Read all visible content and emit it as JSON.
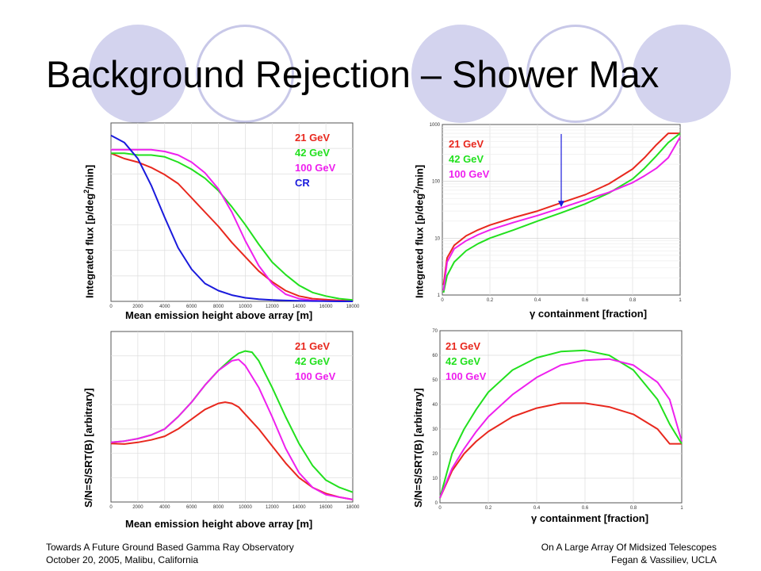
{
  "slide": {
    "title": "Background Rejection – Shower Max",
    "footer_left": [
      "Towards A Future Ground Based Gamma Ray Observatory",
      "October 20, 2005, Malibu, California"
    ],
    "footer_right": [
      "On A Large Array Of Midsized Telescopes",
      "Fegan & Vassiliev, UCLA"
    ],
    "colors": {
      "red": "#e8281e",
      "green": "#22e01e",
      "magenta": "#ee20ee",
      "blue": "#1a1adc",
      "circle_fill": "#d3d3ee",
      "circle_ring": "#c8c8e8"
    }
  },
  "chart_data": [
    {
      "type": "line",
      "xlabel": "Mean emission height above array [m]",
      "ylabel": "Integrated flux [p/deg",
      "ylabel_sup": "2",
      "ylabel_tail": "/min]",
      "xlim": [
        0,
        18000
      ],
      "xticks": [
        "0",
        "2000",
        "4000",
        "6000",
        "8000",
        "10000",
        "12000",
        "14000",
        "16000",
        "18000"
      ],
      "yticks": [],
      "grid": true,
      "legend": [
        "21 GeV",
        "42 GeV",
        "100 GeV",
        "CR"
      ],
      "series": [
        {
          "name": "21 GeV",
          "color": "#e8281e",
          "x": [
            0,
            1000,
            2000,
            3000,
            4000,
            5000,
            6000,
            7000,
            8000,
            9000,
            10000,
            11000,
            12000,
            13000,
            14000,
            15000,
            16000,
            17000,
            18000
          ],
          "y": [
            0.83,
            0.8,
            0.78,
            0.75,
            0.71,
            0.66,
            0.58,
            0.5,
            0.42,
            0.33,
            0.25,
            0.17,
            0.11,
            0.06,
            0.03,
            0.015,
            0.01,
            0.005,
            0.003
          ]
        },
        {
          "name": "42 GeV",
          "color": "#22e01e",
          "x": [
            0,
            1000,
            2000,
            3000,
            4000,
            5000,
            6000,
            7000,
            8000,
            9000,
            10000,
            11000,
            12000,
            13000,
            14000,
            15000,
            16000,
            17000,
            18000
          ],
          "y": [
            0.83,
            0.83,
            0.82,
            0.82,
            0.81,
            0.78,
            0.74,
            0.69,
            0.62,
            0.53,
            0.43,
            0.32,
            0.22,
            0.15,
            0.09,
            0.05,
            0.03,
            0.015,
            0.008
          ]
        },
        {
          "name": "100 GeV",
          "color": "#ee20ee",
          "x": [
            0,
            1000,
            2000,
            3000,
            4000,
            5000,
            6000,
            7000,
            8000,
            9000,
            10000,
            11000,
            12000,
            13000,
            14000,
            15000,
            16000,
            17000,
            18000
          ],
          "y": [
            0.85,
            0.85,
            0.85,
            0.85,
            0.84,
            0.82,
            0.78,
            0.72,
            0.63,
            0.5,
            0.34,
            0.2,
            0.1,
            0.04,
            0.015,
            0.006,
            0.002,
            0.001,
            0.0
          ]
        },
        {
          "name": "CR",
          "color": "#1a1adc",
          "x": [
            0,
            1000,
            2000,
            3000,
            4000,
            5000,
            6000,
            7000,
            8000,
            9000,
            10000,
            11000,
            12000,
            13000,
            14000,
            15000,
            16000,
            17000,
            18000
          ],
          "y": [
            0.93,
            0.89,
            0.8,
            0.65,
            0.47,
            0.3,
            0.18,
            0.1,
            0.06,
            0.035,
            0.02,
            0.012,
            0.008,
            0.005,
            0.003,
            0.002,
            0.001,
            0.0,
            0.0
          ]
        }
      ]
    },
    {
      "type": "line",
      "xlabel": "γ containment [fraction]",
      "ylabel": "Integrated flux [p/deg",
      "ylabel_sup": "2",
      "ylabel_tail": "/min]",
      "xlim": [
        0,
        1
      ],
      "ylim": [
        1,
        1000
      ],
      "yscale": "log",
      "xticks": [
        "0",
        "0.2",
        "0.4",
        "0.6",
        "0.8",
        "1"
      ],
      "yticks": [
        "1",
        "10",
        "100",
        "1000"
      ],
      "grid": true,
      "legend": [
        "21 GeV",
        "42 GeV",
        "100 GeV"
      ],
      "annotation": "downward arrow at x≈0.5 from top to the curves",
      "series": [
        {
          "name": "21 GeV",
          "color": "#e8281e",
          "x": [
            0.005,
            0.02,
            0.05,
            0.1,
            0.15,
            0.2,
            0.3,
            0.4,
            0.5,
            0.6,
            0.7,
            0.8,
            0.85,
            0.9,
            0.95,
            1.0
          ],
          "y": [
            1.5,
            4.5,
            7.5,
            11,
            14,
            17,
            23,
            30,
            42,
            58,
            90,
            165,
            260,
            440,
            700,
            700
          ]
        },
        {
          "name": "42 GeV",
          "color": "#22e01e",
          "x": [
            0.005,
            0.02,
            0.05,
            0.1,
            0.15,
            0.2,
            0.3,
            0.4,
            0.5,
            0.6,
            0.7,
            0.8,
            0.85,
            0.9,
            0.95,
            1.0
          ],
          "y": [
            1.1,
            2.2,
            3.8,
            6,
            8,
            10,
            14,
            20,
            28,
            40,
            62,
            110,
            170,
            280,
            480,
            700
          ]
        },
        {
          "name": "100 GeV",
          "color": "#ee20ee",
          "x": [
            0.005,
            0.02,
            0.05,
            0.1,
            0.15,
            0.2,
            0.3,
            0.4,
            0.5,
            0.6,
            0.7,
            0.8,
            0.85,
            0.9,
            0.95,
            1.0
          ],
          "y": [
            1.2,
            3.8,
            6.5,
            9,
            11.5,
            14,
            19,
            25,
            34,
            47,
            64,
            95,
            125,
            170,
            260,
            600
          ]
        }
      ]
    },
    {
      "type": "line",
      "xlabel": "Mean emission height above array [m]",
      "ylabel": "S/N=S/SRT(B) [arbitrary]",
      "xlim": [
        0,
        18000
      ],
      "xticks": [
        "0",
        "2000",
        "4000",
        "6000",
        "8000",
        "10000",
        "12000",
        "14000",
        "16000",
        "18000"
      ],
      "yticks": [],
      "grid": true,
      "legend": [
        "21 GeV",
        "42 GeV",
        "100 GeV"
      ],
      "series": [
        {
          "name": "21 GeV",
          "color": "#e8281e",
          "x": [
            0,
            1000,
            2000,
            3000,
            4000,
            5000,
            6000,
            7000,
            8000,
            8500,
            9000,
            9500,
            10000,
            11000,
            12000,
            13000,
            14000,
            15000,
            16000,
            17000,
            18000
          ],
          "y": [
            24,
            23.8,
            24.5,
            25.5,
            27,
            30,
            34,
            38,
            40.5,
            41,
            40.5,
            39,
            36,
            30,
            23,
            16,
            10,
            6,
            3.5,
            2,
            1
          ]
        },
        {
          "name": "42 GeV",
          "color": "#22e01e",
          "x": [
            0,
            1000,
            2000,
            3000,
            4000,
            5000,
            6000,
            7000,
            8000,
            9000,
            9500,
            10000,
            10500,
            11000,
            12000,
            13000,
            14000,
            15000,
            16000,
            17000,
            18000
          ],
          "y": [
            24.5,
            25,
            26,
            27.5,
            30,
            35,
            41,
            48,
            54,
            59,
            61,
            62,
            61.5,
            58,
            47,
            35,
            24,
            15,
            9,
            6,
            4
          ]
        },
        {
          "name": "100 GeV",
          "color": "#ee20ee",
          "x": [
            0,
            1000,
            2000,
            3000,
            4000,
            5000,
            6000,
            7000,
            8000,
            9000,
            9500,
            10000,
            11000,
            12000,
            13000,
            14000,
            15000,
            16000,
            17000,
            18000
          ],
          "y": [
            24.5,
            25,
            26,
            27.5,
            30,
            35,
            41,
            48,
            54,
            58,
            58.5,
            56,
            47,
            35,
            22,
            12,
            6,
            3,
            2,
            1
          ]
        }
      ]
    },
    {
      "type": "line",
      "xlabel": "γ containment [fraction]",
      "ylabel": "S/N=S/SRT(B) [arbitrary]",
      "xlim": [
        0,
        1
      ],
      "ylim": [
        0,
        70
      ],
      "xticks": [
        "0",
        "0.2",
        "0.4",
        "0.6",
        "0.8",
        "1"
      ],
      "yticks": [
        "0",
        "10",
        "20",
        "30",
        "40",
        "50",
        "60",
        "70"
      ],
      "grid": true,
      "legend": [
        "21 GeV",
        "42 GeV",
        "100 GeV"
      ],
      "series": [
        {
          "name": "21 GeV",
          "color": "#e8281e",
          "x": [
            0,
            0.05,
            0.1,
            0.15,
            0.2,
            0.3,
            0.4,
            0.5,
            0.6,
            0.7,
            0.8,
            0.9,
            0.95,
            1.0
          ],
          "y": [
            2,
            13,
            20,
            25,
            29,
            35,
            38.5,
            40.5,
            40.5,
            39,
            36,
            30,
            24,
            24
          ]
        },
        {
          "name": "42 GeV",
          "color": "#22e01e",
          "x": [
            0,
            0.05,
            0.1,
            0.15,
            0.2,
            0.3,
            0.4,
            0.5,
            0.6,
            0.7,
            0.8,
            0.9,
            0.95,
            1.0
          ],
          "y": [
            2,
            20,
            30,
            38,
            45,
            54,
            59,
            61.5,
            62,
            60,
            54,
            42,
            32,
            24
          ]
        },
        {
          "name": "100 GeV",
          "color": "#ee20ee",
          "x": [
            0,
            0.05,
            0.1,
            0.15,
            0.2,
            0.3,
            0.4,
            0.5,
            0.6,
            0.7,
            0.8,
            0.9,
            0.95,
            1.0
          ],
          "y": [
            2,
            14,
            22,
            29,
            35,
            44,
            51,
            56,
            58,
            58.5,
            56,
            49,
            42,
            25
          ]
        }
      ]
    }
  ]
}
